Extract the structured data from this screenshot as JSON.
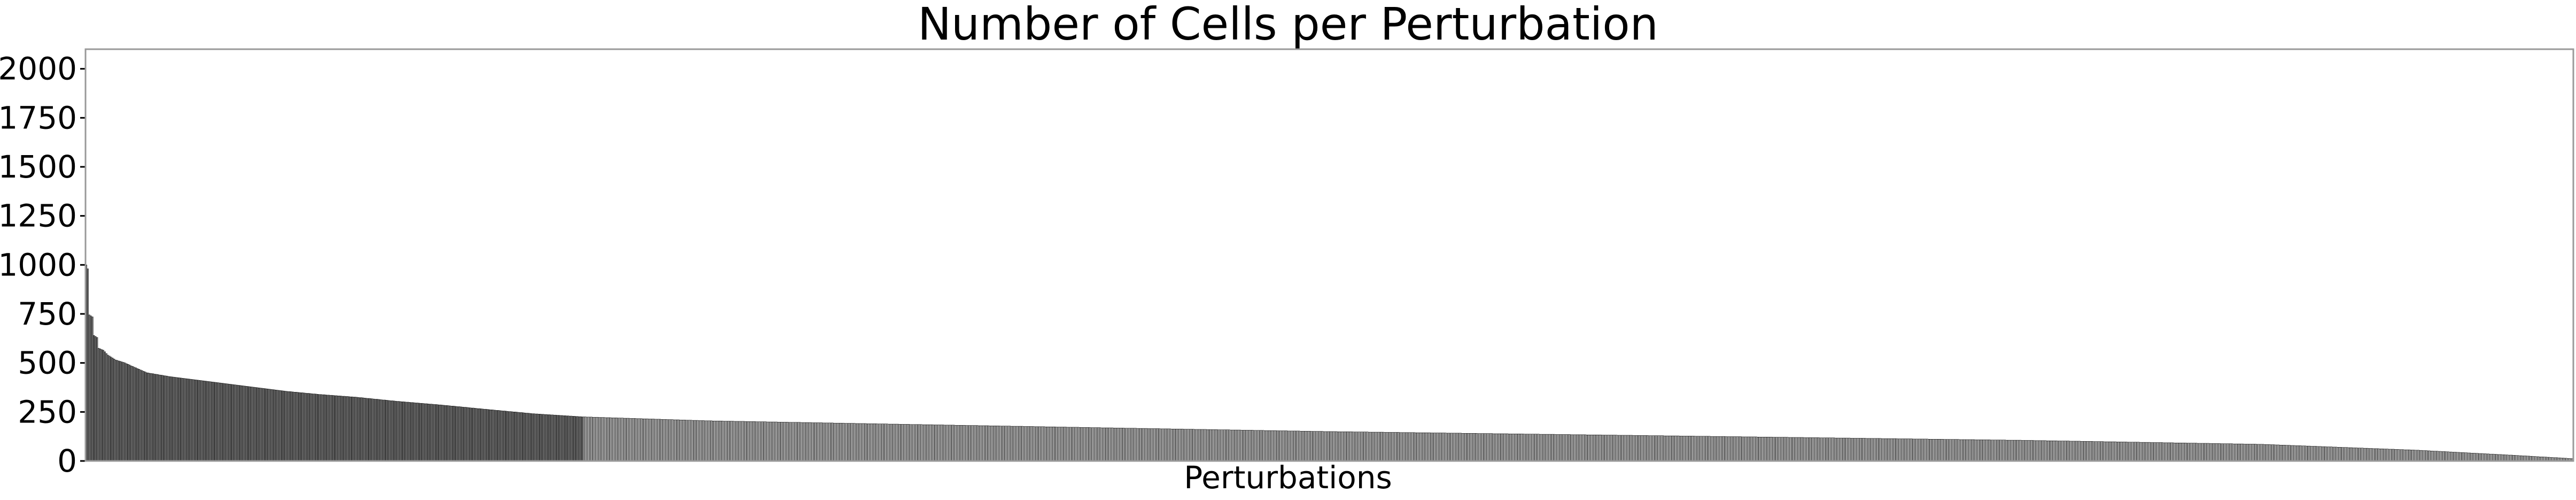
{
  "chart_data": {
    "type": "bar",
    "title": "Number of Cells per Perturbation",
    "xlabel": "Perturbations",
    "ylabel": "",
    "ylim": [
      0,
      2100
    ],
    "yticks": [
      0,
      250,
      500,
      750,
      1000,
      1250,
      1500,
      1750,
      2000
    ],
    "xticks": [],
    "grid": false,
    "n_bars": 1600,
    "highlight_count": 320,
    "highlight_color": "#808080",
    "rest_color": "#d3d3d3",
    "edge_color": "#000000",
    "profile": [
      [
        1,
        1000
      ],
      [
        2,
        980
      ],
      [
        3,
        745
      ],
      [
        5,
        735
      ],
      [
        6,
        640
      ],
      [
        8,
        630
      ],
      [
        9,
        575
      ],
      [
        12,
        565
      ],
      [
        15,
        540
      ],
      [
        20,
        515
      ],
      [
        26,
        500
      ],
      [
        32,
        478
      ],
      [
        40,
        450
      ],
      [
        55,
        430
      ],
      [
        70,
        415
      ],
      [
        90,
        395
      ],
      [
        110,
        375
      ],
      [
        130,
        355
      ],
      [
        150,
        340
      ],
      [
        175,
        325
      ],
      [
        200,
        305
      ],
      [
        230,
        285
      ],
      [
        260,
        262
      ],
      [
        290,
        240
      ],
      [
        320,
        225
      ],
      [
        400,
        205
      ],
      [
        520,
        188
      ],
      [
        650,
        170
      ],
      [
        800,
        150
      ],
      [
        950,
        135
      ],
      [
        1100,
        120
      ],
      [
        1250,
        105
      ],
      [
        1400,
        85
      ],
      [
        1500,
        55
      ],
      [
        1560,
        30
      ],
      [
        1600,
        12
      ]
    ]
  }
}
